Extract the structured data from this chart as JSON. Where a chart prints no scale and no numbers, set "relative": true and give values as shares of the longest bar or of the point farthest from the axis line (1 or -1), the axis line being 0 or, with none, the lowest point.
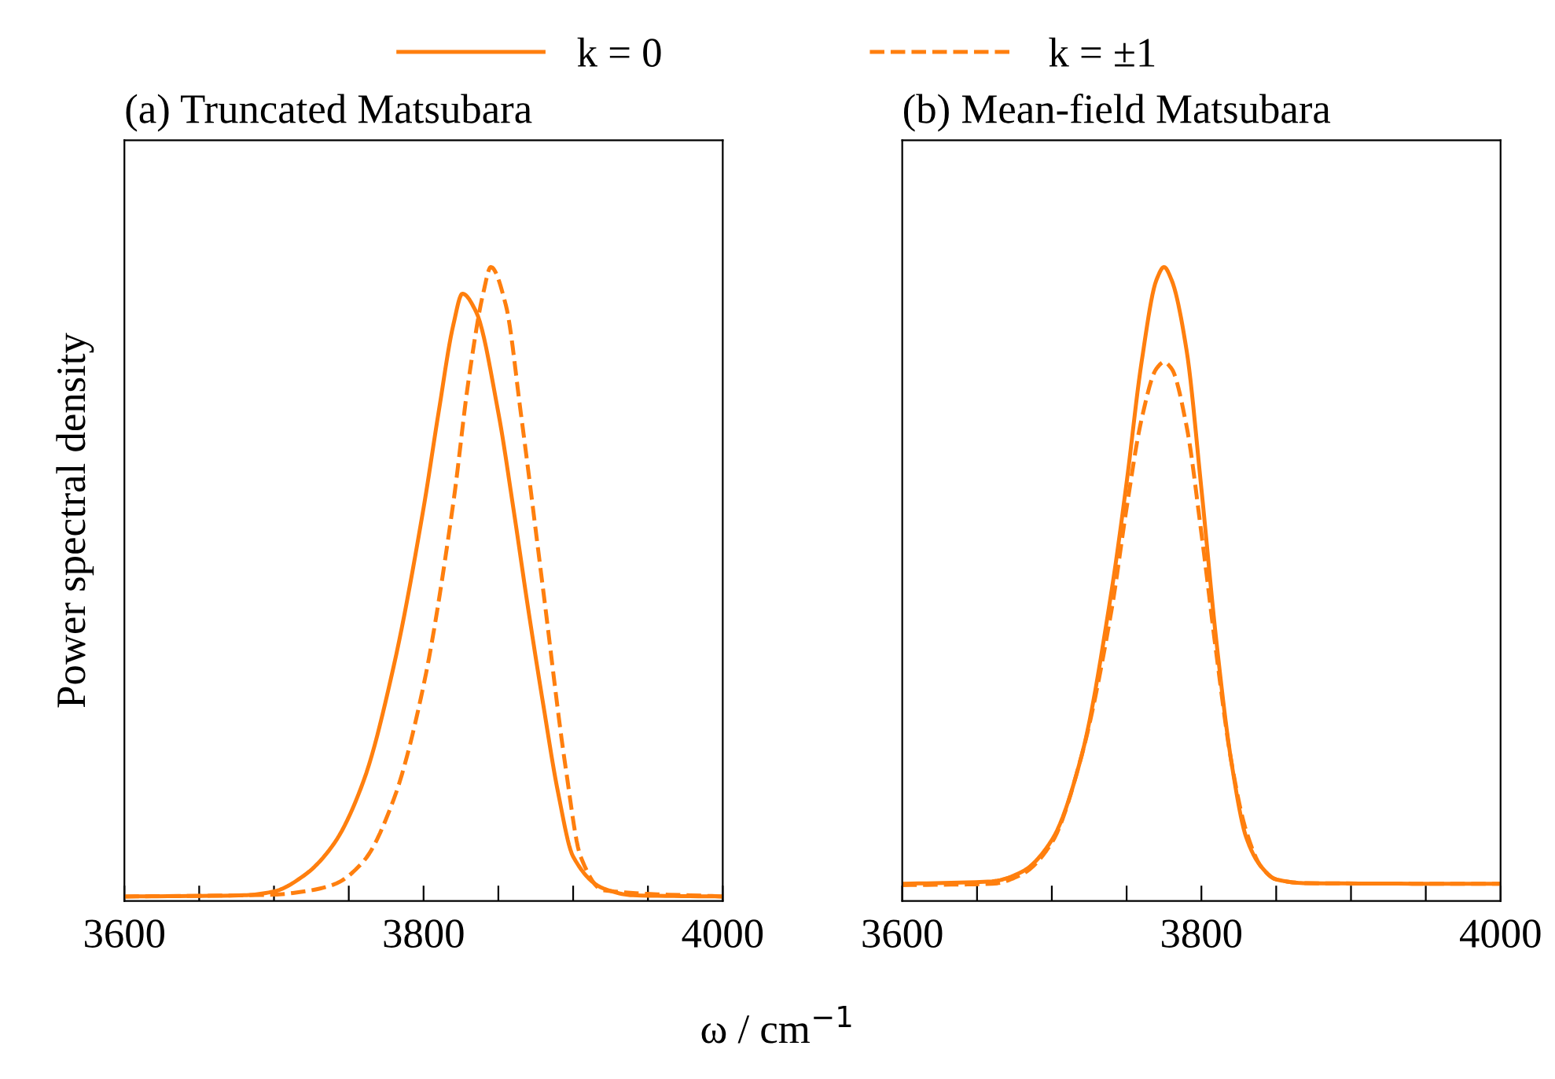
{
  "chart_data": [
    {
      "type": "line",
      "title": "(a) Truncated Matsubara",
      "xlabel": "ω / cm$^{−1}$",
      "ylabel": "Power spectral density",
      "relative": true,
      "legend": "top",
      "xlim": [
        3600,
        4000
      ],
      "xticks": [
        3600,
        {
          "value": 3650,
          "label": null
        },
        {
          "value": 3700,
          "label": null
        },
        {
          "value": 3750,
          "label": null
        },
        3800,
        {
          "value": 3850,
          "label": null
        },
        {
          "value": 3900,
          "label": null
        },
        {
          "value": 3950,
          "label": null
        },
        4000
      ],
      "series": [
        {
          "name": "k = 0",
          "color": "#ff7f0e",
          "line_style": "solid",
          "x": [
            3600,
            3680,
            3700,
            3720,
            3740,
            3760,
            3780,
            3800,
            3810,
            3820,
            3826,
            3835,
            3850,
            3860,
            3870,
            3880,
            3890,
            3900,
            3920,
            3940,
            4000
          ],
          "values": [
            0.007,
            0.009,
            0.015,
            0.04,
            0.09,
            0.19,
            0.37,
            0.62,
            0.77,
            0.91,
            0.958,
            0.93,
            0.77,
            0.62,
            0.46,
            0.31,
            0.17,
            0.07,
            0.02,
            0.009,
            0.007
          ]
        },
        {
          "name": "k = ±1",
          "color": "#ff7f0e",
          "line_style": "dashed",
          "x": [
            3600,
            3700,
            3720,
            3740,
            3760,
            3780,
            3800,
            3820,
            3830,
            3840,
            3845,
            3855,
            3865,
            3880,
            3895,
            3905,
            3920,
            4000
          ],
          "values": [
            0.007,
            0.01,
            0.015,
            0.026,
            0.063,
            0.16,
            0.34,
            0.63,
            0.82,
            0.96,
            1.0,
            0.94,
            0.77,
            0.49,
            0.21,
            0.07,
            0.017,
            0.007
          ]
        }
      ]
    },
    {
      "type": "line",
      "title": "(b) Mean-field Matsubara",
      "relative": true,
      "xlim": [
        3600,
        4000
      ],
      "xticks": [
        3600,
        {
          "value": 3650,
          "label": null
        },
        {
          "value": 3700,
          "label": null
        },
        {
          "value": 3750,
          "label": null
        },
        3800,
        {
          "value": 3850,
          "label": null
        },
        {
          "value": 3900,
          "label": null
        },
        {
          "value": 3950,
          "label": null
        },
        4000
      ],
      "series": [
        {
          "color": "#ff7f0e",
          "line_style": "solid",
          "x": [
            3600,
            3660,
            3680,
            3700,
            3720,
            3740,
            3750,
            3760,
            3770,
            3775,
            3780,
            3790,
            3800,
            3810,
            3820,
            3830,
            3840,
            3850,
            3870,
            4000
          ],
          "values": [
            0.027,
            0.031,
            0.046,
            0.096,
            0.23,
            0.49,
            0.66,
            0.85,
            0.98,
            1.0,
            0.98,
            0.87,
            0.65,
            0.41,
            0.22,
            0.1,
            0.054,
            0.034,
            0.028,
            0.027
          ]
        },
        {
          "color": "#ff7f0e",
          "line_style": "dashed",
          "x": [
            3600,
            3660,
            3680,
            3700,
            3720,
            3740,
            3750,
            3760,
            3770,
            3775,
            3780,
            3790,
            3800,
            3810,
            3820,
            3830,
            3840,
            3850,
            3870,
            4000
          ],
          "values": [
            0.025,
            0.027,
            0.042,
            0.092,
            0.23,
            0.46,
            0.62,
            0.76,
            0.84,
            0.85,
            0.84,
            0.75,
            0.58,
            0.39,
            0.22,
            0.11,
            0.054,
            0.034,
            0.028,
            0.027
          ]
        }
      ]
    }
  ]
}
